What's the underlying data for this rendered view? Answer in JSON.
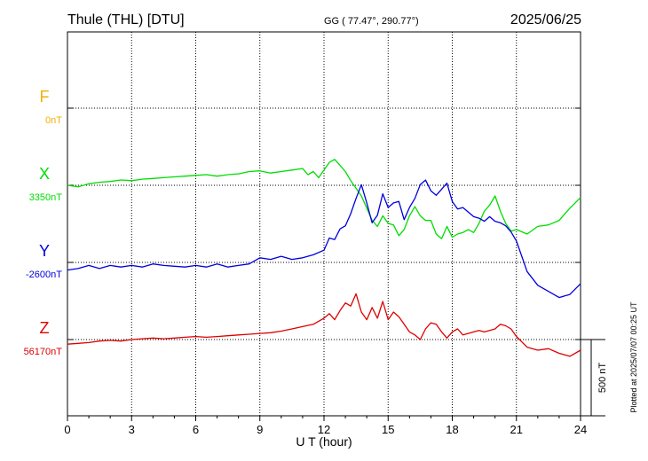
{
  "header": {
    "station": "Thule (THL)  [DTU]",
    "coords": "GG ( 77.47°, 290.77°)",
    "date": "2025/06/25"
  },
  "footer": {
    "xlabel": "U T (hour)",
    "plotted": "Plotted at 2025/07/07 00:25 UT",
    "scale_label": "500 nT"
  },
  "chart_data": {
    "type": "line",
    "title": "Thule (THL)  [DTU]",
    "xlabel": "U T (hour)",
    "xlim": [
      0,
      24
    ],
    "xticks": [
      0,
      3,
      6,
      9,
      12,
      15,
      18,
      21,
      24
    ],
    "scale_bar_nT": 500,
    "grid": true,
    "series": [
      {
        "name": "F",
        "baseline_label": "0nT",
        "baseline": 0,
        "color": "#f0b000",
        "x": [],
        "y": []
      },
      {
        "name": "X",
        "baseline_label": "3350nT",
        "baseline": 3350,
        "color": "#00dd00",
        "x": [
          0,
          0.5,
          1,
          1.5,
          2,
          2.5,
          3,
          3.5,
          4,
          4.5,
          5,
          5.5,
          6,
          6.5,
          7,
          7.5,
          8,
          8.5,
          9,
          9.5,
          10,
          10.5,
          11,
          11.25,
          11.5,
          11.75,
          12,
          12.25,
          12.5,
          12.75,
          13,
          13.25,
          13.5,
          13.75,
          14,
          14.25,
          14.5,
          14.75,
          15,
          15.25,
          15.5,
          15.75,
          16,
          16.25,
          16.5,
          16.75,
          17,
          17.25,
          17.5,
          17.75,
          18,
          18.25,
          18.5,
          18.75,
          19,
          19.25,
          19.5,
          19.75,
          20,
          20.25,
          20.5,
          20.75,
          21,
          21.5,
          22,
          22.5,
          23,
          23.5,
          24
        ],
        "y": [
          3350,
          3340,
          3360,
          3370,
          3375,
          3385,
          3380,
          3390,
          3395,
          3400,
          3405,
          3410,
          3415,
          3420,
          3410,
          3420,
          3425,
          3440,
          3445,
          3430,
          3440,
          3450,
          3460,
          3420,
          3440,
          3400,
          3450,
          3500,
          3520,
          3480,
          3440,
          3380,
          3330,
          3280,
          3200,
          3120,
          3080,
          3150,
          3100,
          3090,
          3020,
          3060,
          3150,
          3210,
          3150,
          3120,
          3120,
          3030,
          3000,
          3080,
          3010,
          3030,
          3040,
          3060,
          3040,
          3100,
          3180,
          3220,
          3280,
          3180,
          3100,
          3050,
          3060,
          3030,
          3080,
          3090,
          3120,
          3200,
          3270
        ]
      },
      {
        "name": "Y",
        "baseline_label": "-2600nT",
        "baseline": -2600,
        "color": "#0000dd",
        "x": [
          0,
          0.5,
          1,
          1.5,
          2,
          2.5,
          3,
          3.5,
          4,
          4.5,
          5,
          5.5,
          6,
          6.5,
          7,
          7.5,
          8,
          8.5,
          9,
          9.5,
          10,
          10.5,
          11,
          11.5,
          12,
          12.25,
          12.5,
          12.75,
          13,
          13.25,
          13.5,
          13.75,
          14,
          14.25,
          14.5,
          14.75,
          15,
          15.25,
          15.5,
          15.75,
          16,
          16.25,
          16.5,
          16.75,
          17,
          17.25,
          17.5,
          17.75,
          18,
          18.25,
          18.5,
          18.75,
          19,
          19.25,
          19.5,
          19.75,
          20,
          20.25,
          20.5,
          20.75,
          21,
          21.5,
          22,
          22.5,
          23,
          23.5,
          24
        ],
        "y": [
          -2650,
          -2640,
          -2620,
          -2640,
          -2620,
          -2630,
          -2620,
          -2630,
          -2610,
          -2620,
          -2625,
          -2630,
          -2620,
          -2630,
          -2610,
          -2630,
          -2620,
          -2610,
          -2570,
          -2580,
          -2560,
          -2580,
          -2570,
          -2550,
          -2520,
          -2440,
          -2450,
          -2380,
          -2360,
          -2280,
          -2180,
          -2090,
          -2210,
          -2340,
          -2290,
          -2150,
          -2240,
          -2210,
          -2200,
          -2320,
          -2240,
          -2180,
          -2090,
          -2060,
          -2130,
          -2160,
          -2120,
          -2080,
          -2200,
          -2250,
          -2240,
          -2270,
          -2300,
          -2310,
          -2330,
          -2300,
          -2330,
          -2340,
          -2360,
          -2400,
          -2460,
          -2660,
          -2750,
          -2790,
          -2830,
          -2810,
          -2740
        ]
      },
      {
        "name": "Z",
        "baseline_label": "56170nT",
        "baseline": 56170,
        "color": "#dd0000",
        "x": [
          0,
          0.5,
          1,
          1.5,
          2,
          2.5,
          3,
          3.5,
          4,
          4.5,
          5,
          5.5,
          6,
          6.5,
          7,
          7.5,
          8,
          8.5,
          9,
          9.5,
          10,
          10.5,
          11,
          11.5,
          12,
          12.25,
          12.5,
          12.75,
          13,
          13.25,
          13.5,
          13.75,
          14,
          14.25,
          14.5,
          14.75,
          15,
          15.25,
          15.5,
          15.75,
          16,
          16.25,
          16.5,
          16.75,
          17,
          17.25,
          17.5,
          17.75,
          18,
          18.25,
          18.5,
          18.75,
          19,
          19.25,
          19.5,
          19.75,
          20,
          20.25,
          20.5,
          20.75,
          21,
          21.5,
          22,
          22.5,
          23,
          23.5,
          24
        ],
        "y": [
          56140,
          56145,
          56150,
          56160,
          56165,
          56160,
          56170,
          56175,
          56180,
          56175,
          56180,
          56185,
          56190,
          56185,
          56190,
          56195,
          56200,
          56205,
          56210,
          56215,
          56225,
          56240,
          56255,
          56270,
          56310,
          56340,
          56300,
          56360,
          56410,
          56390,
          56470,
          56350,
          56300,
          56380,
          56310,
          56420,
          56300,
          56350,
          56320,
          56270,
          56220,
          56200,
          56170,
          56240,
          56280,
          56270,
          56220,
          56180,
          56220,
          56240,
          56200,
          56210,
          56220,
          56230,
          56220,
          56230,
          56240,
          56270,
          56260,
          56240,
          56190,
          56120,
          56100,
          56110,
          56080,
          56060,
          56100
        ]
      }
    ]
  }
}
